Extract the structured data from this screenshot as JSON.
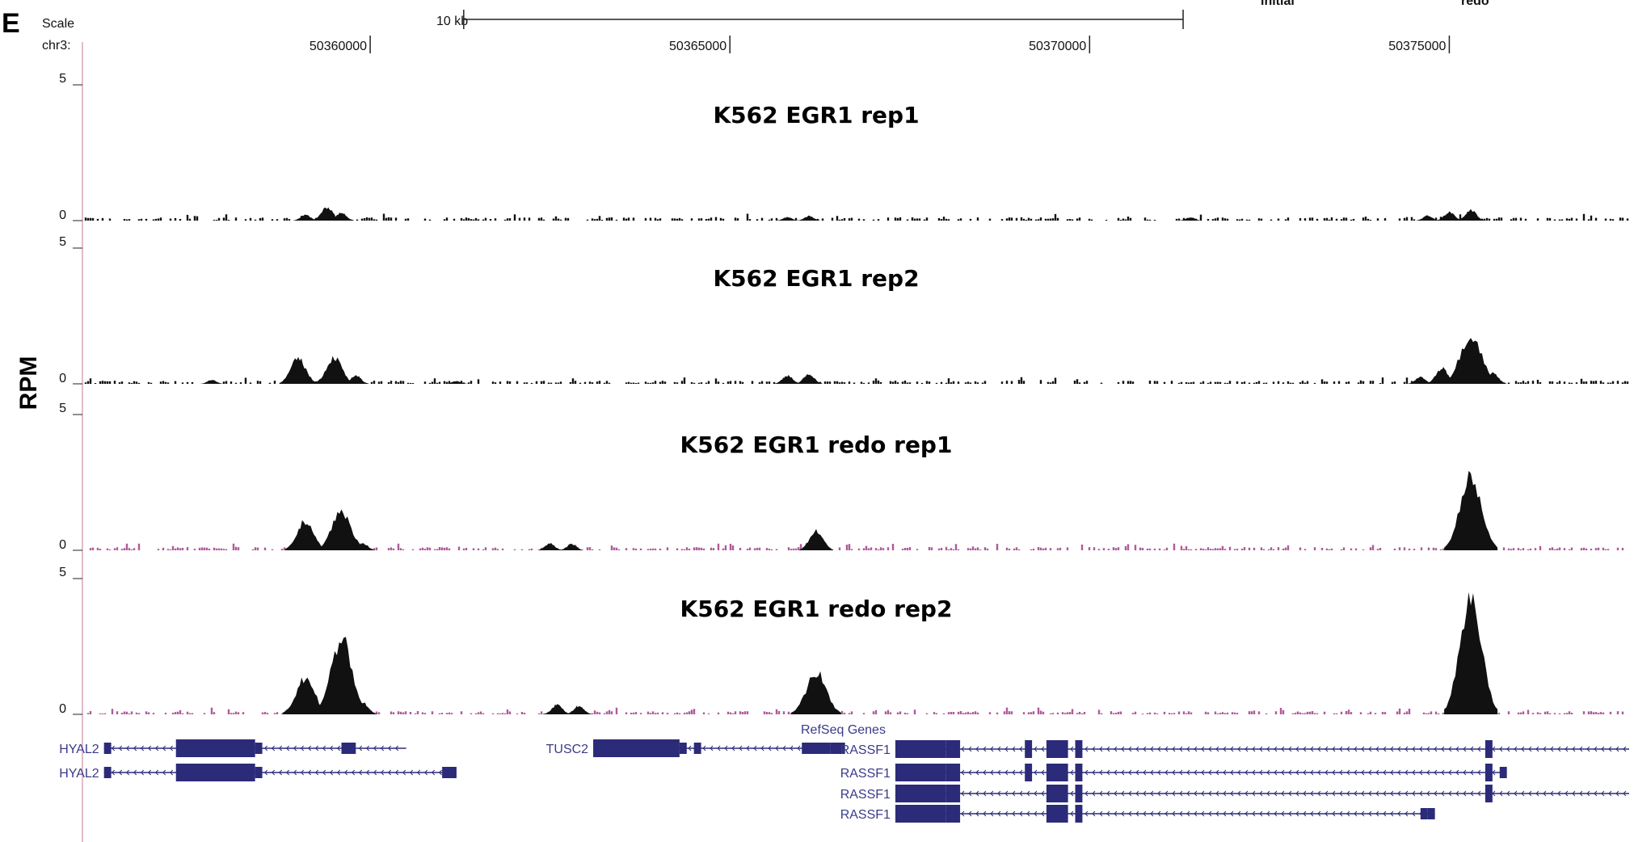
{
  "panel_label": "E",
  "header": {
    "scale_label": "Scale",
    "scale_bar_label": "10 kb",
    "chrom_label": "chr3:",
    "top_right_labels": [
      "initial",
      "redo"
    ]
  },
  "y_axis_label": "RPM",
  "gene_track_title": "RefSeq Genes",
  "colors": {
    "signal": "#111111",
    "gene": "#2b2b7a",
    "gene_label": "#3a3a8c",
    "baseline_redo": "#b05a9a"
  },
  "chart_data": {
    "type": "area",
    "x_domain": [
      50356000,
      50377500
    ],
    "x_ticks": [
      {
        "value": 50360000,
        "label": "50360000"
      },
      {
        "value": 50365000,
        "label": "50365000"
      },
      {
        "value": 50370000,
        "label": "50370000"
      },
      {
        "value": 50375000,
        "label": "50375000"
      }
    ],
    "scale_bar": {
      "start": 50361300,
      "end": 50371300
    },
    "tracks": [
      {
        "title": "K562 EGR1 rep1",
        "ymax_label": "5",
        "ymin_label": "0",
        "ylim": [
          0,
          5
        ],
        "peaks": [
          {
            "x": 50359100,
            "h": 0.22
          },
          {
            "x": 50359400,
            "h": 0.48
          },
          {
            "x": 50359600,
            "h": 0.28
          },
          {
            "x": 50365800,
            "h": 0.12
          },
          {
            "x": 50366100,
            "h": 0.16
          },
          {
            "x": 50371400,
            "h": 0.12
          },
          {
            "x": 50374700,
            "h": 0.18
          },
          {
            "x": 50375000,
            "h": 0.3
          },
          {
            "x": 50375300,
            "h": 0.38
          }
        ]
      },
      {
        "title": "K562 EGR1 rep2",
        "ymax_label": "5",
        "ymin_label": "0",
        "ylim": [
          0,
          5
        ],
        "peaks": [
          {
            "x": 50357800,
            "h": 0.14
          },
          {
            "x": 50359000,
            "h": 0.9
          },
          {
            "x": 50359500,
            "h": 0.95
          },
          {
            "x": 50359800,
            "h": 0.3
          },
          {
            "x": 50361200,
            "h": 0.1
          },
          {
            "x": 50365800,
            "h": 0.3
          },
          {
            "x": 50366100,
            "h": 0.35
          },
          {
            "x": 50374600,
            "h": 0.25
          },
          {
            "x": 50374900,
            "h": 0.55
          },
          {
            "x": 50375300,
            "h": 1.75
          },
          {
            "x": 50375600,
            "h": 0.4
          }
        ]
      },
      {
        "title": "K562 EGR1 redo rep1",
        "ymax_label": "5",
        "ymin_label": "0",
        "ylim": [
          0,
          5
        ],
        "peaks": [
          {
            "x": 50359100,
            "h": 1.05
          },
          {
            "x": 50359600,
            "h": 1.4
          },
          {
            "x": 50359900,
            "h": 0.25
          },
          {
            "x": 50362500,
            "h": 0.25
          },
          {
            "x": 50362800,
            "h": 0.22
          },
          {
            "x": 50366200,
            "h": 0.7
          },
          {
            "x": 50375300,
            "h": 2.6
          }
        ]
      },
      {
        "title": "K562 EGR1 redo rep2",
        "ymax_label": "5",
        "ymin_label": "0",
        "ylim": [
          0,
          5
        ],
        "peaks": [
          {
            "x": 50359100,
            "h": 1.3
          },
          {
            "x": 50359600,
            "h": 2.7
          },
          {
            "x": 50359900,
            "h": 0.4
          },
          {
            "x": 50362600,
            "h": 0.35
          },
          {
            "x": 50362900,
            "h": 0.3
          },
          {
            "x": 50366200,
            "h": 1.5
          },
          {
            "x": 50375300,
            "h": 4.3
          }
        ]
      }
    ],
    "genes": [
      {
        "name": "HYAL2",
        "start": 50356300,
        "end": 50360500,
        "strand": "-",
        "row": 0,
        "exons": [
          [
            50356300,
            50356400,
            "utr"
          ],
          [
            50357300,
            50358400,
            "cds"
          ],
          [
            50358400,
            50358500,
            "utr"
          ],
          [
            50359600,
            50359800,
            "utr"
          ]
        ]
      },
      {
        "name": "HYAL2",
        "start": 50356300,
        "end": 50361200,
        "strand": "-",
        "row": 1,
        "exons": [
          [
            50356300,
            50356400,
            "utr"
          ],
          [
            50357300,
            50358400,
            "cds"
          ],
          [
            50358400,
            50358500,
            "utr"
          ],
          [
            50361000,
            50361200,
            "utr"
          ]
        ]
      },
      {
        "name": "TUSC2",
        "start": 50363100,
        "end": 50366600,
        "strand": "-",
        "row": 0,
        "exons": [
          [
            50363100,
            50364300,
            "cds"
          ],
          [
            50364300,
            50364400,
            "utr"
          ],
          [
            50364500,
            50364600,
            "utr"
          ],
          [
            50366000,
            50366400,
            "utr"
          ],
          [
            50366400,
            50366600,
            "utr"
          ]
        ]
      },
      {
        "name": "RASSF1",
        "start": 50367300,
        "end": 50377500,
        "strand": "-",
        "row": 0,
        "exons": [
          [
            50367300,
            50368000,
            "cds"
          ],
          [
            50368000,
            50368200,
            "cds"
          ],
          [
            50369100,
            50369200,
            "cds"
          ],
          [
            50369400,
            50369700,
            "cds"
          ],
          [
            50369800,
            50369900,
            "cds"
          ],
          [
            50375500,
            50375600,
            "cds"
          ]
        ]
      },
      {
        "name": "RASSF1",
        "start": 50367300,
        "end": 50375800,
        "strand": "-",
        "row": 1,
        "exons": [
          [
            50367300,
            50368000,
            "cds"
          ],
          [
            50368000,
            50368200,
            "cds"
          ],
          [
            50369100,
            50369200,
            "cds"
          ],
          [
            50369400,
            50369700,
            "cds"
          ],
          [
            50369800,
            50369900,
            "cds"
          ],
          [
            50375500,
            50375600,
            "cds"
          ],
          [
            50375700,
            50375800,
            "utr"
          ]
        ]
      },
      {
        "name": "RASSF1",
        "start": 50367300,
        "end": 50377500,
        "strand": "-",
        "row": 2,
        "exons": [
          [
            50367300,
            50368000,
            "cds"
          ],
          [
            50368000,
            50368200,
            "cds"
          ],
          [
            50369400,
            50369700,
            "cds"
          ],
          [
            50369800,
            50369900,
            "cds"
          ],
          [
            50375500,
            50375600,
            "cds"
          ]
        ]
      },
      {
        "name": "RASSF1",
        "start": 50367300,
        "end": 50374800,
        "strand": "-",
        "row": 3,
        "exons": [
          [
            50367300,
            50368000,
            "cds"
          ],
          [
            50368000,
            50368200,
            "cds"
          ],
          [
            50369400,
            50369700,
            "cds"
          ],
          [
            50369800,
            50369900,
            "cds"
          ],
          [
            50374600,
            50374700,
            "utr"
          ],
          [
            50374700,
            50374800,
            "utr"
          ]
        ]
      }
    ]
  }
}
